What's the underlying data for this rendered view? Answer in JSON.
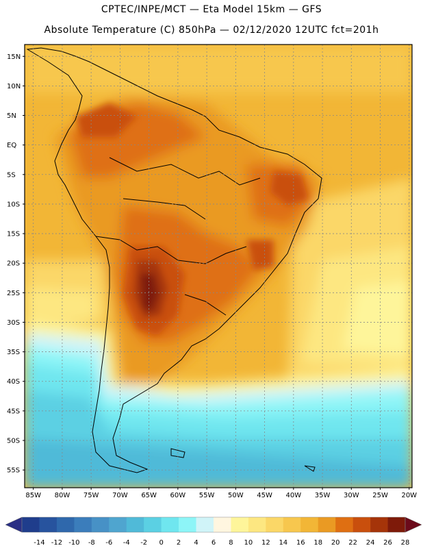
{
  "header": {
    "line1": "CPTEC/INPE/MCT —  Eta Model 15km — GFS",
    "line2": "Absolute Temperature (C) 850hPa — 02/12/2020 12UTC fct=201h"
  },
  "map": {
    "lat_labels": [
      "15N",
      "10N",
      "5N",
      "EQ",
      "5S",
      "10S",
      "15S",
      "20S",
      "25S",
      "30S",
      "35S",
      "40S",
      "45S",
      "50S",
      "55S"
    ],
    "lat_values": [
      15,
      10,
      5,
      0,
      -5,
      -10,
      -15,
      -20,
      -25,
      -30,
      -35,
      -40,
      -45,
      -50,
      -55
    ],
    "lon_labels": [
      "85W",
      "80W",
      "75W",
      "70W",
      "65W",
      "60W",
      "55W",
      "50W",
      "45W",
      "40W",
      "35W",
      "30W",
      "25W",
      "20W"
    ],
    "lon_values": [
      -85,
      -80,
      -75,
      -70,
      -65,
      -60,
      -55,
      -50,
      -45,
      -40,
      -35,
      -30,
      -25,
      -20
    ],
    "lat_range": [
      -58,
      17
    ],
    "lon_range": [
      -86.5,
      -19.5
    ]
  },
  "colorbar": {
    "labels": [
      "-14",
      "-12",
      "-10",
      "-8",
      "-6",
      "-4",
      "-2",
      "0",
      "2",
      "4",
      "6",
      "8",
      "10",
      "12",
      "14",
      "16",
      "18",
      "20",
      "22",
      "24",
      "26",
      "28"
    ],
    "colors": [
      "#1f3d8c",
      "#27539e",
      "#2f68ac",
      "#3b7dbb",
      "#4791c6",
      "#4fa5cf",
      "#50bad8",
      "#5bd0e3",
      "#6fe6ef",
      "#8df5f7",
      "#d0f4f8",
      "#fff6e0",
      "#fef59a",
      "#fde781",
      "#fbd767",
      "#f7c74e",
      "#f2b636",
      "#ea9a23",
      "#df6f12",
      "#c94f0d",
      "#a53409",
      "#7e1a09"
    ],
    "under_color": "#2a2f85",
    "over_color": "#6c0a1a"
  }
}
